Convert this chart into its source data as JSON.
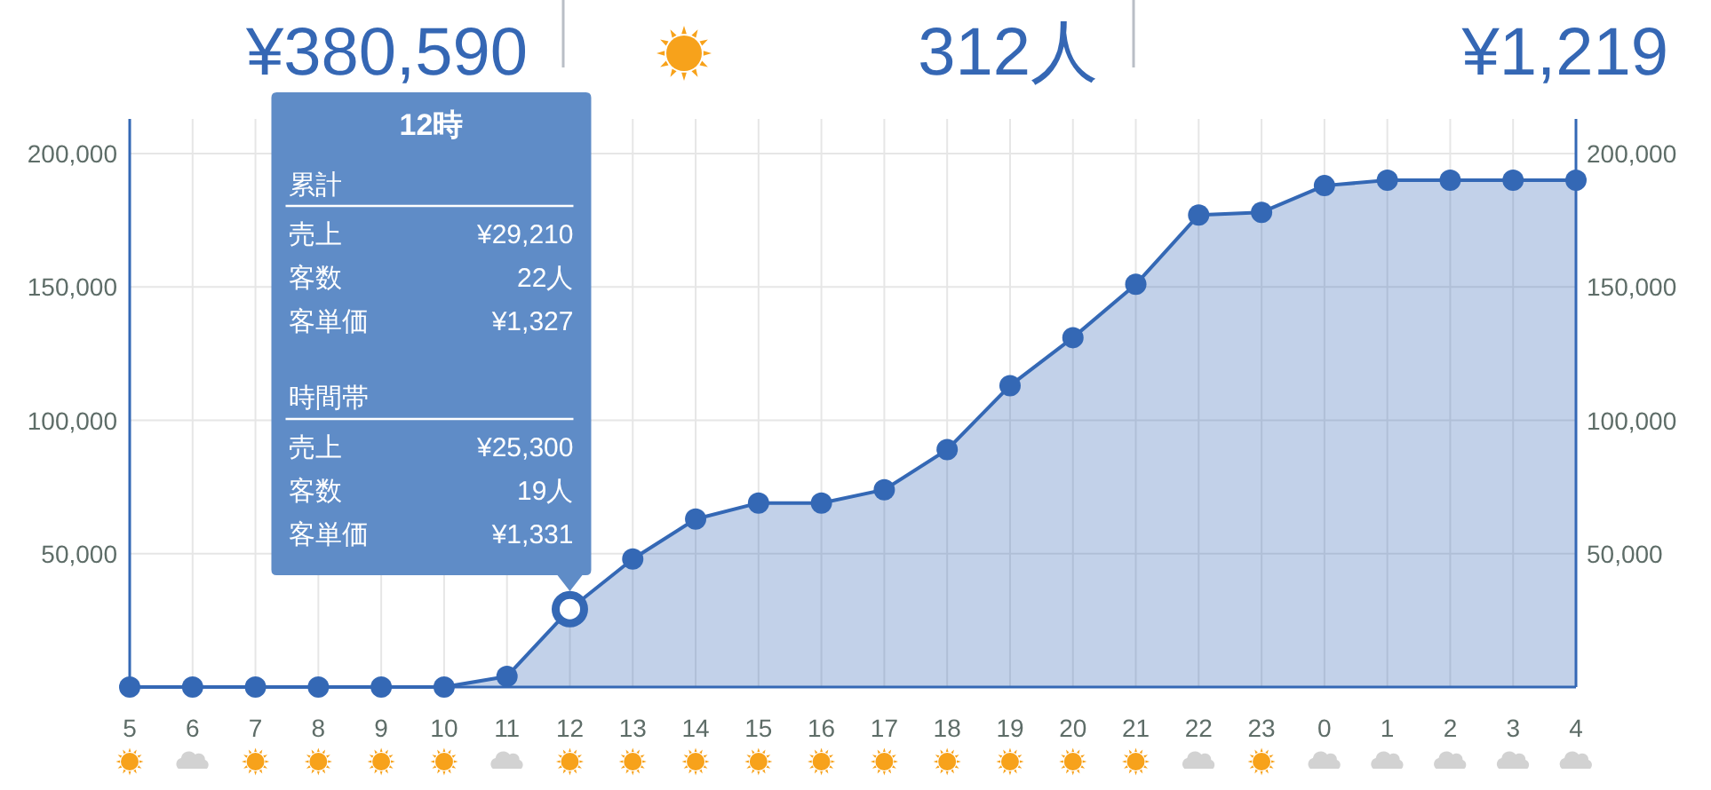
{
  "chart_data": {
    "type": "area",
    "categories": [
      "5",
      "6",
      "7",
      "8",
      "9",
      "10",
      "11",
      "12",
      "13",
      "14",
      "15",
      "16",
      "17",
      "18",
      "19",
      "20",
      "21",
      "22",
      "23",
      "0",
      "1",
      "2",
      "3",
      "4"
    ],
    "series": [
      {
        "color": "#3468b5",
        "values": [
          0,
          0,
          0,
          0,
          0,
          0,
          4000,
          29210,
          48000,
          63000,
          69000,
          69000,
          74000,
          89000,
          113000,
          131000,
          151000,
          177000,
          178000,
          188000,
          190000,
          190000,
          190000,
          190000
        ]
      }
    ],
    "ylim": [
      0,
      213000
    ],
    "yticks": [
      {
        "value": 50000,
        "label": "50,000"
      },
      {
        "value": 100000,
        "label": "100,000"
      },
      {
        "value": 150000,
        "label": "150,000"
      },
      {
        "value": 200000,
        "label": "200,000"
      }
    ],
    "y2lim": [
      0,
      213000
    ],
    "y2ticks": [
      {
        "value": 50000,
        "label": "50,000"
      },
      {
        "value": 100000,
        "label": "100,000"
      },
      {
        "value": 150000,
        "label": "150,000"
      },
      {
        "value": 200000,
        "label": "200,000"
      }
    ],
    "grid": true,
    "marker": "circle",
    "annotations": [
      "¥380,590",
      "312人",
      "¥1,219",
      "12時",
      "累計",
      "売上",
      "¥29,210",
      "客数",
      "22人",
      "客単価",
      "¥1,327",
      "時間帯",
      "売上",
      "¥25,300",
      "客数",
      "19人",
      "客単価",
      "¥1,331"
    ]
  }
}
